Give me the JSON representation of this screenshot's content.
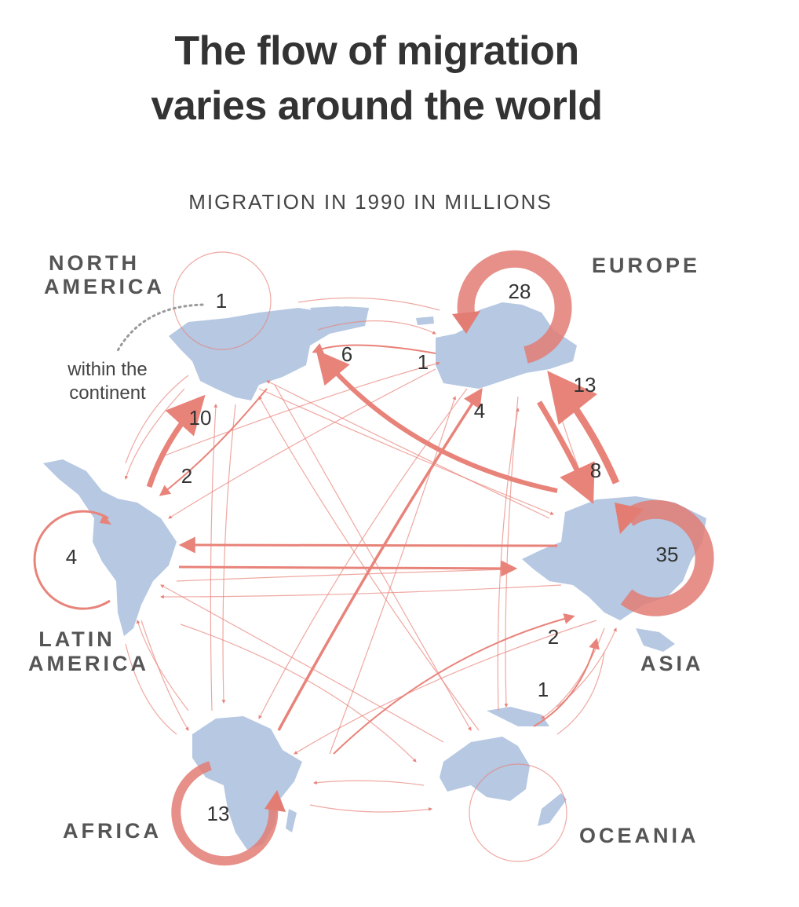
{
  "title_lines": [
    "The flow of migration",
    "varies around the world"
  ],
  "subtitle": "MIGRATION IN 1990 IN MILLIONS",
  "regions": {
    "north_america": [
      "NORTH",
      "AMERICA"
    ],
    "europe": [
      "EUROPE"
    ],
    "latin_america": [
      "LATIN",
      "AMERICA"
    ],
    "asia": [
      "ASIA"
    ],
    "africa": [
      "AFRICA"
    ],
    "oceania": [
      "OCEANIA"
    ]
  },
  "annotation": [
    "within the",
    "continent"
  ],
  "colors": {
    "flow": "#e8837a",
    "land": "#b6c8e2",
    "text": "#333333"
  },
  "flows": [
    {
      "from": "North America",
      "to": "North America",
      "value": "1"
    },
    {
      "from": "Europe",
      "to": "Europe",
      "value": "28"
    },
    {
      "from": "Asia",
      "to": "Asia",
      "value": "35"
    },
    {
      "from": "Latin America",
      "to": "Latin America",
      "value": "4"
    },
    {
      "from": "Africa",
      "to": "Africa",
      "value": "13"
    },
    {
      "from": "Latin America",
      "to": "North America",
      "value": "10"
    },
    {
      "from": "North America",
      "to": "Latin America",
      "value": "2"
    },
    {
      "from": "Asia",
      "to": "North America",
      "value": "6"
    },
    {
      "from": "Europe",
      "to": "North America",
      "value": "1"
    },
    {
      "from": "Africa",
      "to": "Europe",
      "value": "4"
    },
    {
      "from": "Asia",
      "to": "Europe",
      "value": "13"
    },
    {
      "from": "Europe",
      "to": "Asia",
      "value": "8"
    },
    {
      "from": "Africa",
      "to": "Asia",
      "value": "2"
    },
    {
      "from": "Oceania",
      "to": "Asia",
      "value": "1"
    }
  ]
}
